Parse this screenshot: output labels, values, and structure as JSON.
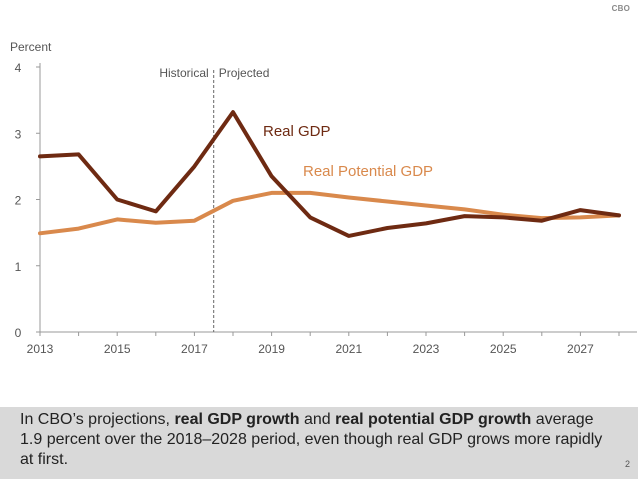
{
  "logo": "CBO",
  "caption": {
    "t1": "In CBO’s projections, ",
    "b1": "real GDP growth",
    "t2": " and ",
    "b2": "real potential GDP growth",
    "t3": " average 1.9 percent over the 2018–2028 period, even though real GDP grows more rapidly at first."
  },
  "page_number": "2",
  "chart_data": {
    "type": "line",
    "ylabel": "Percent",
    "ylim": [
      0,
      4
    ],
    "yticks": [
      0,
      1,
      2,
      3,
      4
    ],
    "xlim": [
      2013,
      2028
    ],
    "xticks": [
      2013,
      2015,
      2017,
      2019,
      2021,
      2023,
      2025,
      2027
    ],
    "divider": {
      "x": 2017.5,
      "left_label": "Historical",
      "right_label": "Projected"
    },
    "x": [
      2013,
      2014,
      2015,
      2016,
      2017,
      2018,
      2019,
      2020,
      2021,
      2022,
      2023,
      2024,
      2025,
      2026,
      2027,
      2028
    ],
    "series": [
      {
        "name": "Real GDP",
        "color": "#6e2a12",
        "values": [
          2.65,
          2.68,
          2.0,
          1.82,
          2.5,
          3.32,
          2.35,
          1.73,
          1.45,
          1.57,
          1.64,
          1.75,
          1.73,
          1.68,
          1.84,
          1.76
        ]
      },
      {
        "name": "Real Potential GDP",
        "color": "#d9894c",
        "values": [
          1.49,
          1.56,
          1.7,
          1.65,
          1.68,
          1.98,
          2.1,
          2.1,
          2.03,
          1.97,
          1.91,
          1.85,
          1.77,
          1.72,
          1.73,
          1.76
        ]
      }
    ]
  }
}
